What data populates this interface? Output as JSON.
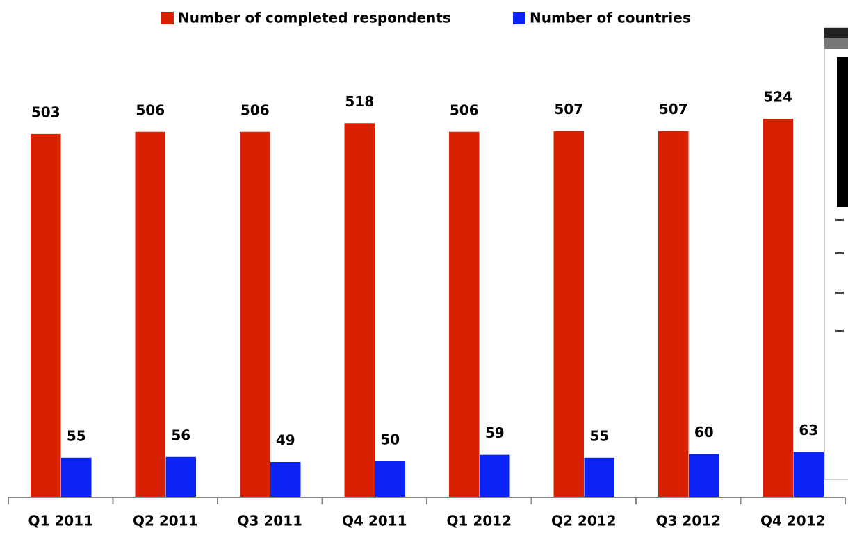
{
  "chart_data": {
    "type": "bar",
    "categories": [
      "Q1 2011",
      "Q2 2011",
      "Q3 2011",
      "Q4 2011",
      "Q1 2012",
      "Q2 2012",
      "Q3 2012",
      "Q4 2012"
    ],
    "series": [
      {
        "name": "Number of completed respondents",
        "color": "#d92000",
        "values": [
          503,
          506,
          506,
          518,
          506,
          507,
          507,
          524
        ]
      },
      {
        "name": "Number of countries",
        "color": "#0a22f5",
        "values": [
          55,
          56,
          49,
          50,
          59,
          55,
          60,
          63
        ]
      }
    ],
    "legend": "top"
  }
}
